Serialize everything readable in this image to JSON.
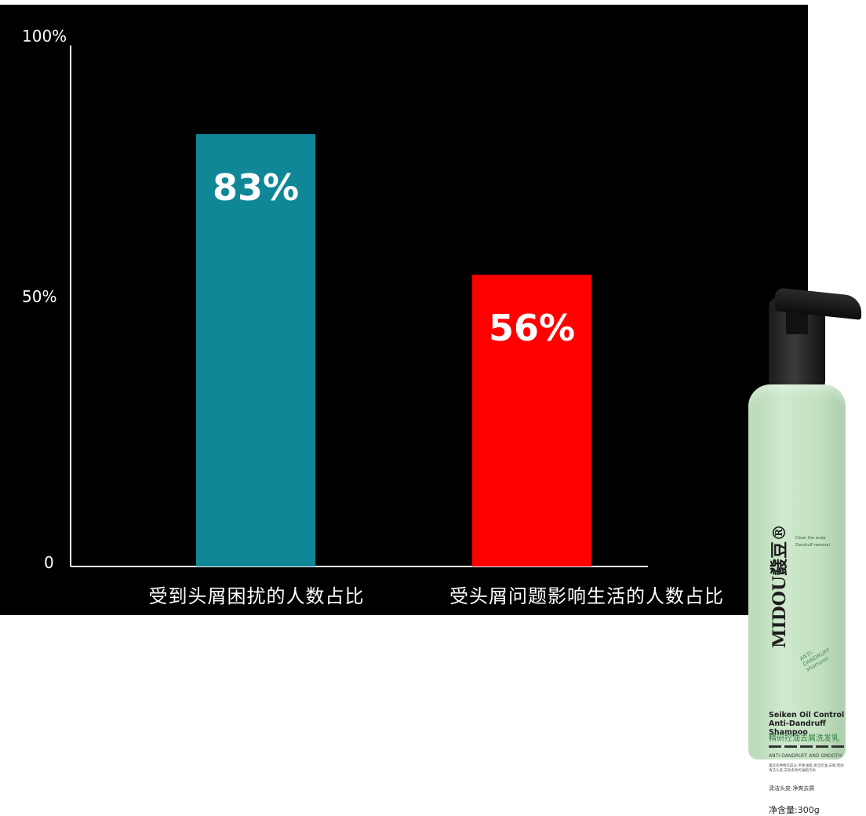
{
  "chart_data": {
    "type": "bar",
    "categories": [
      "受到头屑困扰的人数占比",
      "受头屑问题影响生活的人数占比"
    ],
    "values": [
      83,
      56
    ],
    "value_labels": [
      "83%",
      "56%"
    ],
    "colors": [
      "#0f8796",
      "#ff0000"
    ],
    "y_ticks": [
      {
        "value": 100,
        "label": "100%"
      },
      {
        "value": 50,
        "label": "50%"
      },
      {
        "value": 0,
        "label": "0"
      }
    ],
    "ylim": [
      0,
      100
    ],
    "title": "",
    "xlabel": "",
    "ylabel": "",
    "grid": false,
    "background": "#000000"
  },
  "product": {
    "brand": "MIDOU鼗豆®",
    "bullets": [
      "Clean the scalp",
      "Dandruff removal"
    ],
    "seal_text": "ANTI-DANDRUFF shampoo",
    "name_en": "Seiken Oil Control Anti-Dandruff Shampoo",
    "name_cn": "精研控油去屑洗发乳",
    "subtitle": "ANTI-DANDRUFF AND SMOOTH",
    "description": "蕴含多种精华成分,平衡油脂,清洁控油,去屑,帮助清洁头皮,去除多余的油脂污垢",
    "tagline": "清洁头皮·净爽去屑",
    "net_content": "净含量:300g"
  }
}
